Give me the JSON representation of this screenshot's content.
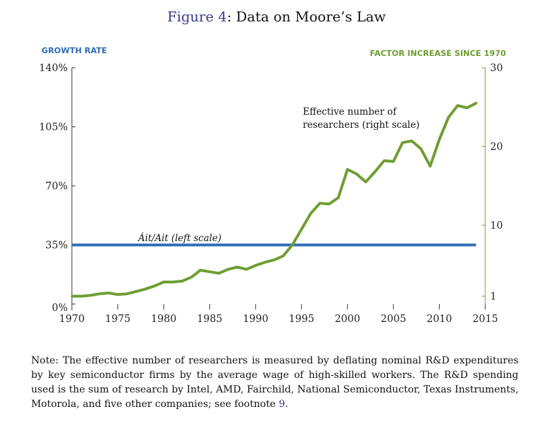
{
  "figure": {
    "label": "Figure 4",
    "separator": ":",
    "title": "Data on Moore’s Law"
  },
  "colors": {
    "left_series": "#2f6db5",
    "right_series": "#6f9d32",
    "left_axis_label": "#2f6db5",
    "right_axis_label": "#6f9d32",
    "footnote_ref": "#3a3a8c"
  },
  "chart_data": {
    "type": "line",
    "title": "Data on Moore’s Law",
    "xlabel": "",
    "x_ticks": [
      "1970",
      "1975",
      "1980",
      "1985",
      "1990",
      "1995",
      "2000",
      "2005",
      "2010",
      "2015"
    ],
    "xlim": [
      1970,
      2015
    ],
    "left_axis": {
      "label": "GROWTH RATE",
      "ticks": [
        "0%",
        "35%",
        "70%",
        "105%",
        "140%"
      ],
      "ylim": [
        0,
        140
      ]
    },
    "right_axis": {
      "label": "FACTOR INCREASE SINCE 1970",
      "ticks": [
        "1",
        "10",
        "20",
        "30"
      ],
      "ylim": [
        0,
        30
      ]
    },
    "series": [
      {
        "name": "Ȧit/Ait (left scale)",
        "axis": "left",
        "x": [
          1970,
          2014
        ],
        "values": [
          35,
          35
        ]
      },
      {
        "name": "Effective number of researchers (right scale)",
        "axis": "right",
        "x": [
          1970,
          1971,
          1972,
          1973,
          1974,
          1975,
          1976,
          1977,
          1978,
          1979,
          1980,
          1981,
          1982,
          1983,
          1984,
          1985,
          1986,
          1987,
          1988,
          1989,
          1990,
          1991,
          1992,
          1993,
          1994,
          1995,
          1996,
          1997,
          1998,
          1999,
          2000,
          2001,
          2002,
          2003,
          2004,
          2005,
          2006,
          2007,
          2008,
          2009,
          2010,
          2011,
          2012,
          2013,
          2014
        ],
        "values": [
          1.0,
          1.0,
          1.1,
          1.3,
          1.4,
          1.2,
          1.3,
          1.6,
          1.9,
          2.3,
          2.8,
          2.8,
          2.9,
          3.4,
          4.3,
          4.1,
          3.9,
          4.4,
          4.7,
          4.4,
          4.9,
          5.3,
          5.6,
          6.1,
          7.5,
          9.5,
          11.5,
          12.8,
          12.7,
          13.5,
          17.1,
          16.5,
          15.5,
          16.8,
          18.2,
          18.1,
          20.5,
          20.7,
          19.7,
          17.5,
          20.9,
          23.7,
          25.2,
          24.9,
          25.5
        ]
      }
    ],
    "annotations": [
      {
        "text_line1": "Effective number of",
        "text_line2": "researchers (right scale)"
      },
      {
        "text": "Ȧit/Ait (left scale)"
      }
    ]
  },
  "note": {
    "text": "Note: The effective number of researchers is measured by deflating nominal R&D expenditures by key semiconductor firms by the average wage of high-skilled workers. The R&D spending used is the sum of research by Intel, AMD, Fairchild, National Semiconductor, Texas Instruments, Motorola, and five other companies; see footnote ",
    "footnote_number": "9",
    "end": "."
  }
}
